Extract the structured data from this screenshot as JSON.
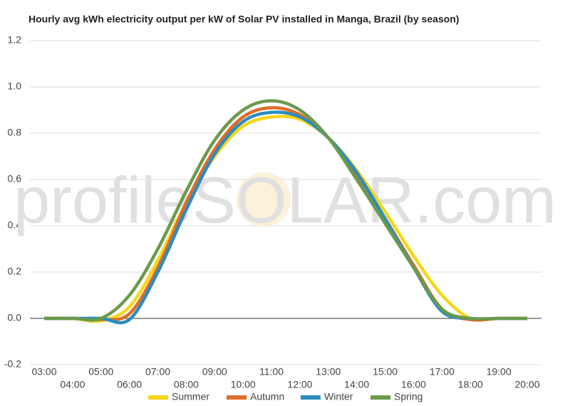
{
  "chart_data": {
    "type": "line",
    "title": "Hourly avg kWh electricity output per kW of Solar PV installed in Manga, Brazil (by season)",
    "watermark": "profileSOLAR.com",
    "categories": [
      "03:00",
      "04:00",
      "05:00",
      "06:00",
      "07:00",
      "08:00",
      "09:00",
      "10:00",
      "11:00",
      "12:00",
      "13:00",
      "14:00",
      "15:00",
      "16:00",
      "17:00",
      "18:00",
      "19:00",
      "20:00"
    ],
    "series": [
      {
        "name": "Summer",
        "color": "#f7d619",
        "values": [
          0,
          0,
          -0.01,
          0.05,
          0.25,
          0.5,
          0.7,
          0.83,
          0.87,
          0.86,
          0.78,
          0.64,
          0.46,
          0.27,
          0.1,
          0,
          0,
          0
        ]
      },
      {
        "name": "Autumn",
        "color": "#e06c2a",
        "values": [
          0,
          0,
          -0.005,
          0.02,
          0.22,
          0.5,
          0.73,
          0.87,
          0.91,
          0.88,
          0.78,
          0.62,
          0.43,
          0.23,
          0.04,
          -0.005,
          0,
          0
        ]
      },
      {
        "name": "Winter",
        "color": "#2a8dbf",
        "values": [
          0,
          0,
          0,
          -0.005,
          0.2,
          0.47,
          0.71,
          0.85,
          0.89,
          0.87,
          0.78,
          0.63,
          0.43,
          0.22,
          0.03,
          0,
          0,
          0
        ]
      },
      {
        "name": "Spring",
        "color": "#6b9a4b",
        "values": [
          0,
          0,
          0,
          0.1,
          0.3,
          0.55,
          0.77,
          0.9,
          0.94,
          0.9,
          0.78,
          0.6,
          0.41,
          0.22,
          0.04,
          0,
          0,
          0
        ]
      }
    ],
    "ylim": [
      -0.2,
      1.2
    ],
    "yticks": [
      -0.2,
      {
        "value": 0,
        "label": "0.0"
      },
      0.2,
      0.4,
      0.6,
      0.8,
      {
        "value": 1,
        "label": "1.0"
      },
      1.2
    ],
    "grid": true
  }
}
